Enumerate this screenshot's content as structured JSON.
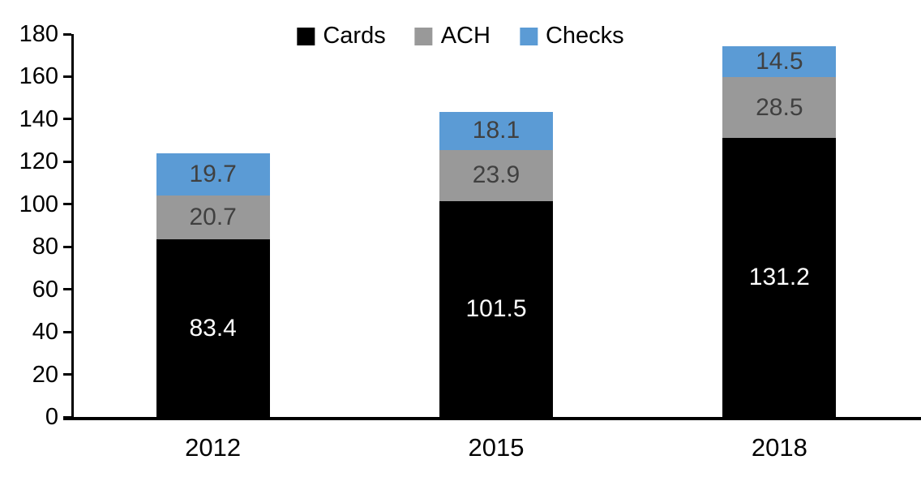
{
  "chart_data": {
    "type": "bar",
    "stacked": true,
    "title": "",
    "categories": [
      "2012",
      "2015",
      "2018"
    ],
    "series": [
      {
        "name": "Cards",
        "color": "#000000",
        "label_color": "#FFFFFF",
        "values": [
          83.4,
          101.5,
          131.2
        ]
      },
      {
        "name": "ACH",
        "color": "#999999",
        "label_color": "#404040",
        "values": [
          20.7,
          23.9,
          28.5
        ]
      },
      {
        "name": "Checks",
        "color": "#5B9BD5",
        "label_color": "#404040",
        "values": [
          19.7,
          18.1,
          14.5
        ]
      }
    ],
    "ylim": [
      0,
      180
    ],
    "ytick_step": 20,
    "yticks": [
      0,
      20,
      40,
      60,
      80,
      100,
      120,
      140,
      160,
      180
    ],
    "value_decimals": 1,
    "legend": {
      "position": "top",
      "entries": [
        "Cards",
        "ACH",
        "Checks"
      ]
    },
    "grid": false,
    "axis_color": "#000000"
  }
}
